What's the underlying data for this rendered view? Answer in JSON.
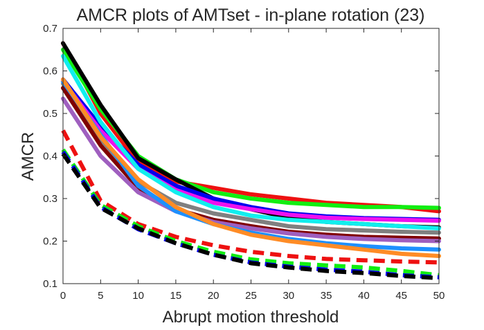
{
  "chart_data": {
    "type": "line",
    "title": "AMCR plots of AMTset - in-plane rotation (23)",
    "xlabel": "Abrupt motion threshold",
    "ylabel": "AMCR",
    "xlim": [
      0,
      50
    ],
    "ylim": [
      0.1,
      0.7
    ],
    "xticks": [
      0,
      5,
      10,
      15,
      20,
      25,
      30,
      35,
      40,
      45,
      50
    ],
    "yticks": [
      0.1,
      0.2,
      0.3,
      0.4,
      0.5,
      0.6,
      0.7
    ],
    "xtick_labels": [
      "0",
      "5",
      "10",
      "15",
      "20",
      "25",
      "30",
      "35",
      "40",
      "45",
      "50"
    ],
    "ytick_labels": [
      "0.1",
      "0.2",
      "0.3",
      "0.4",
      "0.5",
      "0.6",
      "0.7"
    ],
    "grid": false,
    "legend": "none",
    "x": [
      0,
      5,
      10,
      15,
      20,
      25,
      30,
      35,
      40,
      45,
      50
    ],
    "series": [
      {
        "color": "#ee1111",
        "dash": false,
        "values": [
          0.665,
          0.5,
          0.385,
          0.34,
          0.325,
          0.31,
          0.3,
          0.29,
          0.285,
          0.28,
          0.27
        ]
      },
      {
        "color": "#11ee11",
        "dash": false,
        "values": [
          0.65,
          0.51,
          0.4,
          0.345,
          0.315,
          0.3,
          0.29,
          0.285,
          0.28,
          0.28,
          0.278
        ]
      },
      {
        "color": "#000000",
        "dash": false,
        "values": [
          0.665,
          0.52,
          0.395,
          0.345,
          0.3,
          0.275,
          0.255,
          0.245,
          0.24,
          0.235,
          0.232
        ]
      },
      {
        "color": "#0000ee",
        "dash": false,
        "values": [
          0.58,
          0.47,
          0.38,
          0.33,
          0.3,
          0.28,
          0.265,
          0.258,
          0.254,
          0.252,
          0.25
        ]
      },
      {
        "color": "#ee11ee",
        "dash": false,
        "values": [
          0.575,
          0.46,
          0.37,
          0.32,
          0.29,
          0.275,
          0.262,
          0.255,
          0.252,
          0.25,
          0.248
        ]
      },
      {
        "color": "#11eeee",
        "dash": false,
        "values": [
          0.635,
          0.48,
          0.37,
          0.315,
          0.28,
          0.26,
          0.25,
          0.245,
          0.24,
          0.235,
          0.23
        ]
      },
      {
        "color": "#808080",
        "dash": false,
        "values": [
          0.57,
          0.44,
          0.34,
          0.29,
          0.265,
          0.25,
          0.235,
          0.228,
          0.225,
          0.222,
          0.22
        ]
      },
      {
        "color": "#800000",
        "dash": false,
        "values": [
          0.56,
          0.425,
          0.325,
          0.275,
          0.25,
          0.235,
          0.222,
          0.215,
          0.21,
          0.208,
          0.206
        ]
      },
      {
        "color": "#9f5fbf",
        "dash": false,
        "values": [
          0.535,
          0.4,
          0.315,
          0.27,
          0.245,
          0.23,
          0.218,
          0.21,
          0.205,
          0.202,
          0.2
        ]
      },
      {
        "color": "#1e90ff",
        "dash": false,
        "values": [
          0.575,
          0.45,
          0.33,
          0.27,
          0.24,
          0.22,
          0.205,
          0.195,
          0.188,
          0.183,
          0.18
        ]
      },
      {
        "color": "#ff8c26",
        "dash": false,
        "values": [
          0.58,
          0.445,
          0.345,
          0.28,
          0.24,
          0.215,
          0.2,
          0.19,
          0.18,
          0.17,
          0.165
        ]
      },
      {
        "color": "#ee1111",
        "dash": true,
        "values": [
          0.46,
          0.295,
          0.24,
          0.21,
          0.19,
          0.175,
          0.165,
          0.158,
          0.155,
          0.152,
          0.15
        ]
      },
      {
        "color": "#11ee11",
        "dash": true,
        "values": [
          0.415,
          0.285,
          0.235,
          0.2,
          0.175,
          0.157,
          0.148,
          0.143,
          0.138,
          0.13,
          0.12
        ]
      },
      {
        "color": "#0000ee",
        "dash": true,
        "values": [
          0.41,
          0.28,
          0.228,
          0.195,
          0.168,
          0.15,
          0.14,
          0.133,
          0.128,
          0.12,
          0.115
        ]
      },
      {
        "color": "#000000",
        "dash": true,
        "values": [
          0.405,
          0.278,
          0.23,
          0.195,
          0.168,
          0.148,
          0.138,
          0.13,
          0.125,
          0.118,
          0.113
        ]
      }
    ]
  }
}
